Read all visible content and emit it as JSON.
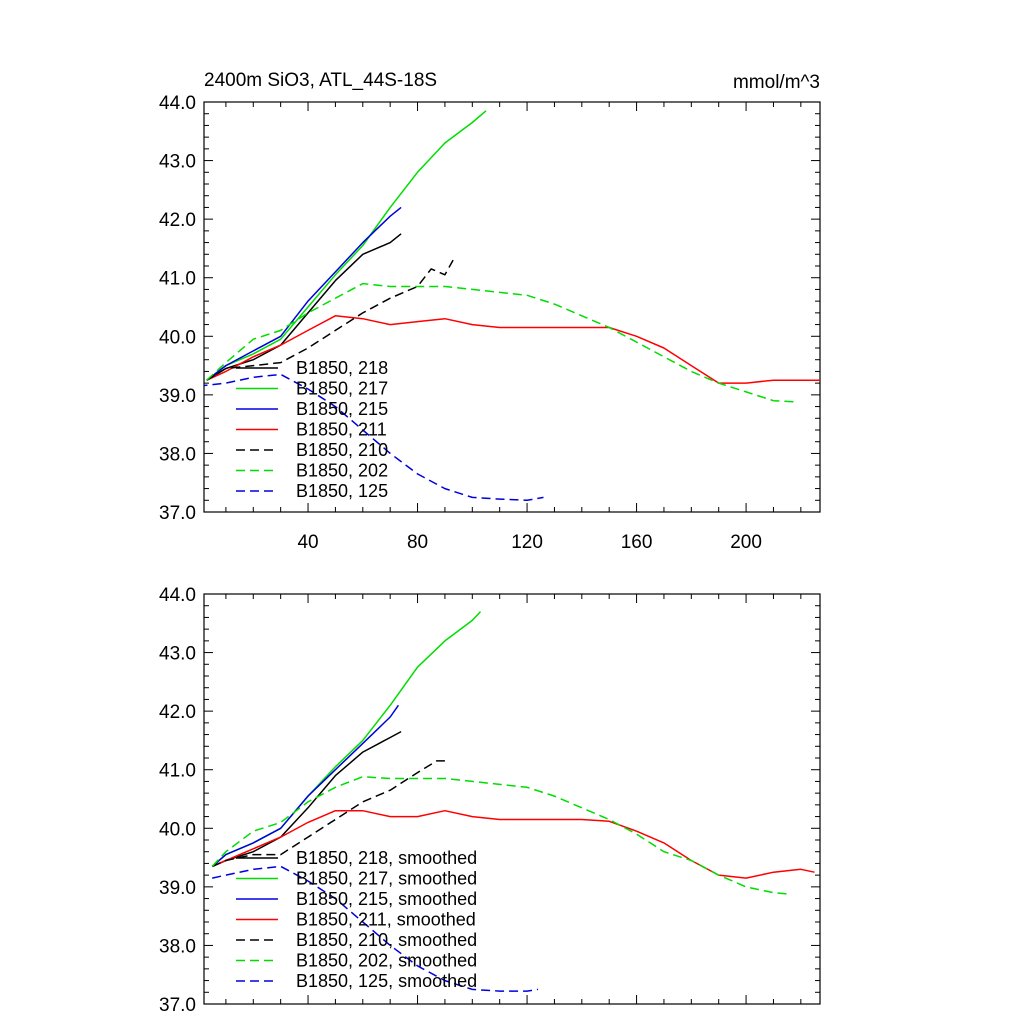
{
  "figure": {
    "title_left": "2400m SiO3, ATL_44S-18S",
    "title_right": "mmol/m^3"
  },
  "chart_data": [
    {
      "type": "line",
      "title": "2400m SiO3, ATL_44S-18S",
      "units": "mmol/m^3",
      "xlim": [
        2,
        227
      ],
      "ylim": [
        37.0,
        44.0
      ],
      "x_ticks": [
        40,
        80,
        120,
        160,
        200
      ],
      "x_tick_labels": [
        "40",
        "80",
        "120",
        "160",
        "200"
      ],
      "y_ticks": [
        37.0,
        38.0,
        39.0,
        40.0,
        41.0,
        42.0,
        43.0,
        44.0
      ],
      "y_tick_labels": [
        "37.0",
        "38.0",
        "39.0",
        "40.0",
        "41.0",
        "42.0",
        "43.0",
        "44.0"
      ],
      "legend_position": "bottom-left",
      "series": [
        {
          "name": "B1850, 218",
          "color": "#000000",
          "dash": "solid",
          "x": [
            3,
            10,
            20,
            30,
            40,
            50,
            60,
            70,
            74
          ],
          "y": [
            39.25,
            39.45,
            39.6,
            39.85,
            40.4,
            40.95,
            41.4,
            41.6,
            41.75
          ]
        },
        {
          "name": "B1850, 217",
          "color": "#00dd00",
          "dash": "solid",
          "x": [
            3,
            10,
            20,
            30,
            40,
            50,
            60,
            70,
            80,
            90,
            100,
            105
          ],
          "y": [
            39.25,
            39.5,
            39.7,
            39.95,
            40.5,
            41.05,
            41.55,
            42.2,
            42.8,
            43.3,
            43.65,
            43.85
          ]
        },
        {
          "name": "B1850, 215",
          "color": "#0000dd",
          "dash": "solid",
          "x": [
            3,
            10,
            20,
            30,
            40,
            50,
            60,
            70,
            74
          ],
          "y": [
            39.25,
            39.5,
            39.75,
            40.0,
            40.6,
            41.1,
            41.6,
            42.05,
            42.2
          ]
        },
        {
          "name": "B1850, 211",
          "color": "#ff0000",
          "dash": "solid",
          "x": [
            3,
            10,
            20,
            30,
            40,
            50,
            60,
            70,
            80,
            90,
            100,
            110,
            120,
            130,
            140,
            150,
            160,
            170,
            180,
            190,
            200,
            210,
            220,
            227
          ],
          "y": [
            39.25,
            39.4,
            39.65,
            39.85,
            40.1,
            40.35,
            40.3,
            40.2,
            40.25,
            40.3,
            40.2,
            40.15,
            40.15,
            40.15,
            40.15,
            40.15,
            40.0,
            39.8,
            39.5,
            39.2,
            39.2,
            39.25,
            39.25,
            39.25
          ]
        },
        {
          "name": "B1850, 210",
          "color": "#000000",
          "dash": "dashed",
          "x": [
            3,
            10,
            20,
            30,
            40,
            50,
            60,
            70,
            80,
            85,
            90,
            93
          ],
          "y": [
            39.25,
            39.45,
            39.5,
            39.55,
            39.8,
            40.1,
            40.4,
            40.65,
            40.85,
            41.15,
            41.05,
            41.3
          ]
        },
        {
          "name": "B1850, 202",
          "color": "#00dd00",
          "dash": "dashed",
          "x": [
            3,
            10,
            20,
            30,
            40,
            50,
            60,
            70,
            80,
            90,
            100,
            110,
            120,
            130,
            140,
            150,
            160,
            170,
            180,
            190,
            200,
            210,
            218
          ],
          "y": [
            39.25,
            39.55,
            39.95,
            40.1,
            40.4,
            40.65,
            40.9,
            40.85,
            40.85,
            40.85,
            40.8,
            40.75,
            40.7,
            40.55,
            40.35,
            40.15,
            39.9,
            39.65,
            39.4,
            39.2,
            39.05,
            38.9,
            38.88
          ]
        },
        {
          "name": "B1850, 125",
          "color": "#0000dd",
          "dash": "dashed",
          "x": [
            0,
            10,
            20,
            30,
            40,
            50,
            60,
            70,
            80,
            90,
            100,
            110,
            120,
            126
          ],
          "y": [
            39.15,
            39.2,
            39.3,
            39.35,
            39.1,
            38.8,
            38.4,
            38.0,
            37.65,
            37.4,
            37.25,
            37.22,
            37.2,
            37.25
          ]
        }
      ]
    },
    {
      "type": "line",
      "title": "",
      "xlim": [
        2,
        227
      ],
      "ylim": [
        37.0,
        44.0
      ],
      "y_ticks": [
        37.0,
        38.0,
        39.0,
        40.0,
        41.0,
        42.0,
        43.0,
        44.0
      ],
      "y_tick_labels": [
        "37.0",
        "38.0",
        "39.0",
        "40.0",
        "41.0",
        "42.0",
        "43.0",
        "44.0"
      ],
      "legend_position": "bottom-left",
      "series": [
        {
          "name": "B1850, 218, smoothed",
          "color": "#000000",
          "dash": "solid",
          "x": [
            5,
            10,
            20,
            30,
            40,
            50,
            60,
            70,
            74
          ],
          "y": [
            39.35,
            39.45,
            39.6,
            39.85,
            40.35,
            40.9,
            41.3,
            41.55,
            41.65
          ]
        },
        {
          "name": "B1850, 217, smoothed",
          "color": "#00dd00",
          "dash": "solid",
          "x": [
            5,
            10,
            20,
            30,
            40,
            50,
            60,
            70,
            80,
            90,
            100,
            103
          ],
          "y": [
            39.35,
            39.55,
            39.75,
            40.0,
            40.55,
            41.05,
            41.5,
            42.1,
            42.75,
            43.2,
            43.55,
            43.7
          ]
        },
        {
          "name": "B1850, 215, smoothed",
          "color": "#0000dd",
          "dash": "solid",
          "x": [
            5,
            10,
            20,
            30,
            40,
            50,
            60,
            70,
            73
          ],
          "y": [
            39.35,
            39.55,
            39.75,
            40.0,
            40.55,
            41.0,
            41.45,
            41.9,
            42.1
          ]
        },
        {
          "name": "B1850, 211, smoothed",
          "color": "#ff0000",
          "dash": "solid",
          "x": [
            5,
            10,
            20,
            30,
            40,
            50,
            60,
            70,
            80,
            90,
            100,
            110,
            120,
            130,
            140,
            150,
            160,
            170,
            180,
            190,
            200,
            210,
            220,
            225
          ],
          "y": [
            39.35,
            39.45,
            39.65,
            39.85,
            40.1,
            40.3,
            40.3,
            40.2,
            40.2,
            40.3,
            40.2,
            40.15,
            40.15,
            40.15,
            40.15,
            40.12,
            39.95,
            39.75,
            39.45,
            39.2,
            39.15,
            39.25,
            39.3,
            39.25
          ]
        },
        {
          "name": "B1850, 210, smoothed",
          "color": "#000000",
          "dash": "dashed",
          "x": [
            5,
            10,
            20,
            30,
            40,
            50,
            60,
            70,
            80,
            87,
            90
          ],
          "y": [
            39.35,
            39.45,
            39.55,
            39.55,
            39.85,
            40.15,
            40.45,
            40.65,
            40.95,
            41.15,
            41.15
          ]
        },
        {
          "name": "B1850, 202, smoothed",
          "color": "#00dd00",
          "dash": "dashed",
          "x": [
            5,
            10,
            20,
            30,
            40,
            50,
            60,
            70,
            80,
            90,
            100,
            110,
            120,
            130,
            140,
            150,
            160,
            170,
            180,
            190,
            200,
            210,
            215
          ],
          "y": [
            39.35,
            39.6,
            39.95,
            40.1,
            40.45,
            40.7,
            40.88,
            40.85,
            40.85,
            40.85,
            40.8,
            40.75,
            40.7,
            40.55,
            40.35,
            40.15,
            39.9,
            39.6,
            39.45,
            39.2,
            39.0,
            38.9,
            38.88
          ]
        },
        {
          "name": "B1850, 125, smoothed",
          "color": "#0000dd",
          "dash": "dashed",
          "x": [
            5,
            10,
            20,
            30,
            40,
            50,
            60,
            70,
            80,
            90,
            100,
            110,
            120,
            124
          ],
          "y": [
            39.15,
            39.2,
            39.3,
            39.35,
            39.1,
            38.8,
            38.4,
            38.0,
            37.65,
            37.4,
            37.25,
            37.22,
            37.22,
            37.25
          ]
        }
      ]
    }
  ]
}
